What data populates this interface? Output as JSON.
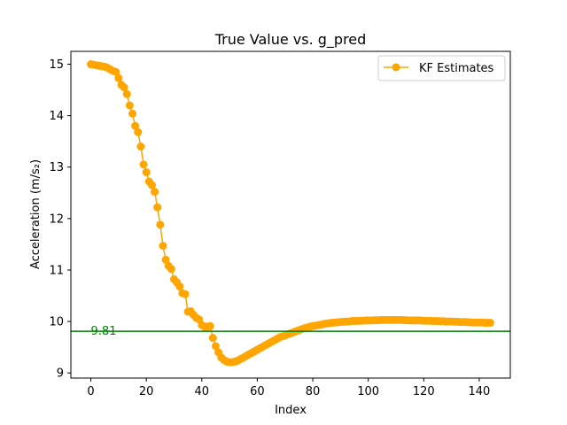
{
  "chart_data": {
    "type": "line",
    "title": "True Value vs. g_pred",
    "xlabel": "Index",
    "ylabel": "Acceleration (m/s₂)",
    "xlim": [
      -7.2,
      151.2
    ],
    "ylim": [
      8.9,
      15.25
    ],
    "xticks": [
      0,
      20,
      40,
      60,
      80,
      100,
      120,
      140
    ],
    "yticks": [
      9,
      10,
      11,
      12,
      13,
      14,
      15
    ],
    "grid": false,
    "legend_position": "top-right",
    "series": [
      {
        "name": "KF Estimates",
        "color": "#FFA500",
        "marker": "circle",
        "x": [
          0,
          1,
          2,
          3,
          4,
          5,
          6,
          7,
          8,
          9,
          10,
          11,
          12,
          13,
          14,
          15,
          16,
          17,
          18,
          19,
          20,
          21,
          22,
          23,
          24,
          25,
          26,
          27,
          28,
          29,
          30,
          31,
          32,
          33,
          34,
          35,
          36,
          37,
          38,
          39,
          40,
          41,
          42,
          43,
          44,
          45,
          46,
          47,
          48,
          49,
          50,
          51,
          52,
          53,
          54,
          55,
          56,
          57,
          58,
          59,
          60,
          61,
          62,
          63,
          64,
          65,
          66,
          67,
          68,
          69,
          70,
          71,
          72,
          73,
          74,
          75,
          76,
          77,
          78,
          79,
          80,
          81,
          82,
          83,
          84,
          85,
          86,
          87,
          88,
          89,
          90,
          91,
          92,
          93,
          94,
          95,
          96,
          97,
          98,
          99,
          100,
          101,
          102,
          103,
          104,
          105,
          106,
          107,
          108,
          109,
          110,
          111,
          112,
          113,
          114,
          115,
          116,
          117,
          118,
          119,
          120,
          121,
          122,
          123,
          124,
          125,
          126,
          127,
          128,
          129,
          130,
          131,
          132,
          133,
          134,
          135,
          136,
          137,
          138,
          139,
          140,
          141,
          142,
          143,
          144
        ],
        "y": [
          15.0,
          14.99,
          14.98,
          14.97,
          14.96,
          14.95,
          14.93,
          14.9,
          14.87,
          14.85,
          14.73,
          14.6,
          14.55,
          14.42,
          14.2,
          14.04,
          13.8,
          13.68,
          13.4,
          13.05,
          12.9,
          12.72,
          12.65,
          12.52,
          12.22,
          11.88,
          11.47,
          11.2,
          11.08,
          11.02,
          10.82,
          10.76,
          10.68,
          10.55,
          10.53,
          10.19,
          10.2,
          10.13,
          10.07,
          10.04,
          9.93,
          9.9,
          9.9,
          9.91,
          9.68,
          9.52,
          9.4,
          9.3,
          9.25,
          9.22,
          9.21,
          9.21,
          9.22,
          9.24,
          9.27,
          9.3,
          9.33,
          9.36,
          9.39,
          9.42,
          9.45,
          9.48,
          9.51,
          9.54,
          9.57,
          9.6,
          9.63,
          9.66,
          9.69,
          9.71,
          9.73,
          9.75,
          9.77,
          9.79,
          9.81,
          9.83,
          9.85,
          9.87,
          9.88,
          9.9,
          9.91,
          9.92,
          9.93,
          9.94,
          9.95,
          9.96,
          9.97,
          9.975,
          9.98,
          9.985,
          9.99,
          9.995,
          10.0,
          10.0,
          10.01,
          10.01,
          10.01,
          10.015,
          10.015,
          10.02,
          10.02,
          10.02,
          10.025,
          10.025,
          10.025,
          10.03,
          10.03,
          10.03,
          10.03,
          10.03,
          10.03,
          10.03,
          10.03,
          10.025,
          10.025,
          10.02,
          10.02,
          10.02,
          10.02,
          10.02,
          10.015,
          10.015,
          10.015,
          10.01,
          10.01,
          10.01,
          10.005,
          10.005,
          10.0,
          10.0,
          10.0,
          9.995,
          9.995,
          9.99,
          9.99,
          9.99,
          9.985,
          9.985,
          9.98,
          9.98,
          9.98,
          9.98,
          9.975,
          9.975,
          9.975
        ]
      }
    ],
    "reference_line": {
      "y": 9.81,
      "label": "9.81",
      "color": "#008000"
    }
  }
}
